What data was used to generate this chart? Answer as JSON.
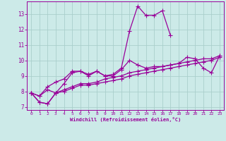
{
  "xlabel": "Windchill (Refroidissement éolien,°C)",
  "x": [
    0,
    1,
    2,
    3,
    4,
    5,
    6,
    7,
    8,
    9,
    10,
    11,
    12,
    13,
    14,
    15,
    16,
    17,
    18,
    19,
    20,
    21,
    22,
    23
  ],
  "line1": [
    7.9,
    7.7,
    8.3,
    8.6,
    8.8,
    9.3,
    9.3,
    9.1,
    9.3,
    9.0,
    9.1,
    9.5,
    11.9,
    13.5,
    12.9,
    12.9,
    13.2,
    11.6,
    null,
    null,
    null,
    null,
    null,
    null
  ],
  "line2": [
    7.9,
    7.7,
    8.1,
    7.9,
    8.5,
    9.2,
    9.3,
    9.0,
    9.3,
    9.0,
    9.0,
    9.4,
    10.0,
    9.7,
    9.5,
    9.6,
    9.6,
    9.7,
    9.8,
    10.2,
    10.1,
    9.5,
    9.2,
    10.3
  ],
  "line3": [
    7.9,
    7.3,
    7.2,
    7.9,
    8.1,
    8.3,
    8.5,
    8.5,
    8.6,
    8.8,
    8.9,
    9.0,
    9.2,
    9.3,
    9.4,
    9.5,
    9.6,
    9.7,
    9.8,
    9.9,
    10.0,
    10.1,
    10.1,
    10.3
  ],
  "line4": [
    7.9,
    7.3,
    7.2,
    7.9,
    8.0,
    8.2,
    8.4,
    8.4,
    8.5,
    8.6,
    8.7,
    8.8,
    9.0,
    9.1,
    9.2,
    9.3,
    9.4,
    9.5,
    9.6,
    9.7,
    9.8,
    9.9,
    10.0,
    10.2
  ],
  "color": "#990099",
  "bg_color": "#cceae8",
  "grid_color": "#aacfcc",
  "ylim": [
    6.8,
    13.8
  ],
  "xlim": [
    -0.5,
    23.5
  ],
  "yticks": [
    7,
    8,
    9,
    10,
    11,
    12,
    13
  ],
  "xticks": [
    0,
    1,
    2,
    3,
    4,
    5,
    6,
    7,
    8,
    9,
    10,
    11,
    12,
    13,
    14,
    15,
    16,
    17,
    18,
    19,
    20,
    21,
    22,
    23
  ]
}
